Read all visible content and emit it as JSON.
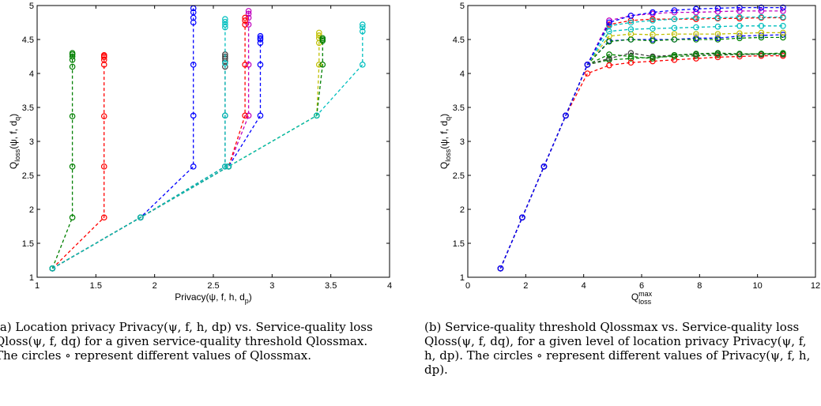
{
  "captions": {
    "a": "(a) Location privacy Privacy(ψ, f, h, dp) vs. Service-quality loss Qloss(ψ, f, dq) for a given service-quality threshold Qlossmax. The circles ∘ represent different values of Qlossmax.",
    "b": "(b) Service-quality threshold Qlossmax vs. Service-quality loss Qloss(ψ, f, dq), for a given level of location privacy Privacy(ψ, f, h, dp). The circles ∘ represent different values of Privacy(ψ, f, h, dp)."
  },
  "chart_data": [
    {
      "type": "line",
      "xlabel": "Privacy(ψ, f, h, d",
      "xlabel_sub": "p",
      "ylabel": "Q",
      "ylabel_sub1": "loss",
      "ylabel_rest": "(ψ, f, d",
      "ylabel_sub2": "q",
      "xlim": [
        1,
        4
      ],
      "ylim": [
        1,
        5
      ],
      "xticks": [
        "1",
        "1.5",
        "2",
        "2.5",
        "3",
        "3.5",
        "4"
      ],
      "yticks": [
        "1",
        "1.5",
        "2",
        "2.5",
        "3",
        "3.5",
        "4",
        "4.5",
        "5"
      ],
      "line_style": "dashed",
      "marker": "open-circle",
      "series": [
        {
          "color": "#008000",
          "x": [
            1.13,
            1.3,
            1.3,
            1.3,
            1.3,
            1.3,
            1.3,
            1.3,
            1.3
          ],
          "y": [
            1.13,
            1.88,
            2.63,
            3.37,
            4.1,
            4.2,
            4.25,
            4.28,
            4.3
          ]
        },
        {
          "color": "#ff0000",
          "x": [
            1.13,
            1.57,
            1.57,
            1.57,
            1.57,
            1.57,
            1.57,
            1.57,
            1.57
          ],
          "y": [
            1.13,
            1.88,
            2.63,
            3.37,
            4.13,
            4.2,
            4.24,
            4.26,
            4.27
          ]
        },
        {
          "color": "#0000ff",
          "x": [
            1.13,
            1.88,
            2.33,
            2.33,
            2.33,
            2.33,
            2.33,
            2.33,
            2.33
          ],
          "y": [
            1.13,
            1.88,
            2.63,
            3.38,
            4.13,
            4.75,
            4.82,
            4.9,
            4.96
          ]
        },
        {
          "color": "#404040",
          "x": [
            1.13,
            1.88,
            2.6,
            2.6,
            2.6,
            2.6,
            2.6,
            2.6,
            2.6
          ],
          "y": [
            1.13,
            1.88,
            2.63,
            3.38,
            4.1,
            4.18,
            4.22,
            4.25,
            4.28
          ]
        },
        {
          "color": "#00bfbf",
          "x": [
            1.13,
            1.88,
            2.6,
            2.6,
            2.6,
            2.6,
            2.6,
            2.6,
            2.6
          ],
          "y": [
            1.13,
            1.88,
            2.63,
            3.38,
            4.15,
            4.68,
            4.72,
            4.76,
            4.8
          ]
        },
        {
          "color": "#bf00bf",
          "x": [
            1.13,
            1.88,
            2.63,
            2.8,
            2.8,
            2.8,
            2.8,
            2.8,
            2.8
          ],
          "y": [
            1.13,
            1.88,
            2.63,
            3.38,
            4.13,
            4.72,
            4.82,
            4.88,
            4.92
          ]
        },
        {
          "color": "#ff0000",
          "x": [
            1.13,
            1.88,
            2.63,
            2.77,
            2.77,
            2.77,
            2.77,
            2.77
          ],
          "y": [
            1.13,
            1.88,
            2.63,
            3.38,
            4.13,
            4.72,
            4.78,
            4.82
          ]
        },
        {
          "color": "#0000ff",
          "x": [
            1.13,
            1.88,
            2.63,
            2.9,
            2.9,
            2.9,
            2.9,
            2.9,
            2.9
          ],
          "y": [
            1.13,
            1.88,
            2.63,
            3.38,
            4.13,
            4.45,
            4.5,
            4.52,
            4.55
          ]
        },
        {
          "color": "#bfbf00",
          "x": [
            1.13,
            1.88,
            2.63,
            3.38,
            3.4,
            3.4,
            3.4,
            3.4,
            3.4
          ],
          "y": [
            1.13,
            1.88,
            2.63,
            3.38,
            4.13,
            4.45,
            4.52,
            4.56,
            4.6
          ]
        },
        {
          "color": "#008000",
          "x": [
            1.13,
            1.88,
            2.63,
            3.38,
            3.43,
            3.43,
            3.43,
            3.43
          ],
          "y": [
            1.13,
            1.88,
            2.63,
            3.38,
            4.13,
            4.48,
            4.5,
            4.52
          ]
        },
        {
          "color": "#00bfbf",
          "x": [
            1.13,
            1.88,
            2.63,
            3.38,
            3.77,
            3.77,
            3.77,
            3.77
          ],
          "y": [
            1.13,
            1.88,
            2.63,
            3.38,
            4.13,
            4.62,
            4.68,
            4.72
          ]
        }
      ]
    },
    {
      "type": "line",
      "xlabel": "Q",
      "xlabel_sup": "max",
      "xlabel_sub": "loss",
      "ylabel": "Q",
      "ylabel_sub1": "loss",
      "ylabel_rest": "(ψ, f, d",
      "ylabel_sub2": "q",
      "xlim": [
        0,
        12
      ],
      "ylim": [
        1,
        5
      ],
      "xticks": [
        "0",
        "2",
        "4",
        "6",
        "8",
        "10",
        "12"
      ],
      "yticks": [
        "1",
        "1.5",
        "2",
        "2.5",
        "3",
        "3.5",
        "4",
        "4.5",
        "5"
      ],
      "line_style": "dashed",
      "marker": "open-circle",
      "series": [
        {
          "color": "#008000",
          "x": [
            1.13,
            1.88,
            2.63,
            3.38,
            4.13,
            4.88,
            5.63,
            6.38,
            7.13,
            7.88,
            8.63,
            9.38,
            10.13,
            10.88
          ],
          "y": [
            1.13,
            1.88,
            2.63,
            3.38,
            4.13,
            4.2,
            4.22,
            4.24,
            4.25,
            4.26,
            4.27,
            4.28,
            4.29,
            4.3
          ]
        },
        {
          "color": "#ff0000",
          "x": [
            1.13,
            1.88,
            2.63,
            3.38,
            4.13,
            4.88,
            5.63,
            6.38,
            7.13,
            7.88,
            8.63,
            9.38,
            10.13,
            10.88
          ],
          "y": [
            1.13,
            1.88,
            2.63,
            3.38,
            4.0,
            4.12,
            4.16,
            4.18,
            4.2,
            4.22,
            4.24,
            4.25,
            4.26,
            4.26
          ]
        },
        {
          "color": "#404040",
          "x": [
            1.13,
            1.88,
            2.63,
            3.38,
            4.13,
            4.88,
            5.63,
            6.38,
            7.13,
            7.88,
            8.63,
            9.38,
            10.13,
            10.88
          ],
          "y": [
            1.13,
            1.88,
            2.63,
            3.38,
            4.13,
            4.22,
            4.3,
            4.25,
            4.27,
            4.28,
            4.29,
            4.28,
            4.28,
            4.28
          ]
        },
        {
          "color": "#008000",
          "x": [
            1.13,
            1.88,
            2.63,
            3.38,
            4.13,
            4.88,
            5.63,
            6.38,
            7.13,
            7.88,
            8.63,
            9.38,
            10.13,
            10.88
          ],
          "y": [
            1.13,
            1.88,
            2.63,
            3.38,
            4.13,
            4.28,
            4.25,
            4.22,
            4.27,
            4.29,
            4.3,
            4.29,
            4.29,
            4.29
          ]
        },
        {
          "color": "#0000ff",
          "x": [
            1.13,
            1.88,
            2.63,
            3.38,
            4.13,
            4.88,
            5.63,
            6.38,
            7.13,
            7.88,
            8.63,
            9.38,
            10.13,
            10.88
          ],
          "y": [
            1.13,
            1.88,
            2.63,
            3.38,
            4.13,
            4.48,
            4.5,
            4.5,
            4.5,
            4.52,
            4.52,
            4.55,
            4.56,
            4.57
          ]
        },
        {
          "color": "#008000",
          "x": [
            1.13,
            1.88,
            2.63,
            3.38,
            4.13,
            4.88,
            5.63,
            6.38,
            7.13,
            7.88,
            8.63,
            9.38,
            10.13,
            10.88
          ],
          "y": [
            1.13,
            1.88,
            2.63,
            3.38,
            4.13,
            4.47,
            4.5,
            4.48,
            4.5,
            4.5,
            4.5,
            4.52,
            4.53,
            4.53
          ]
        },
        {
          "color": "#bfbf00",
          "x": [
            1.13,
            1.88,
            2.63,
            3.38,
            4.13,
            4.88,
            5.63,
            6.38,
            7.13,
            7.88,
            8.63,
            9.38,
            10.13,
            10.88
          ],
          "y": [
            1.13,
            1.88,
            2.63,
            3.38,
            4.13,
            4.55,
            4.58,
            4.57,
            4.58,
            4.58,
            4.58,
            4.59,
            4.6,
            4.6
          ]
        },
        {
          "color": "#00bfbf",
          "x": [
            1.13,
            1.88,
            2.63,
            3.38,
            4.13,
            4.88,
            5.63,
            6.38,
            7.13,
            7.88,
            8.63,
            9.38,
            10.13,
            10.88
          ],
          "y": [
            1.13,
            1.88,
            2.63,
            3.38,
            4.13,
            4.62,
            4.65,
            4.66,
            4.67,
            4.68,
            4.69,
            4.7,
            4.7,
            4.7
          ]
        },
        {
          "color": "#ff0000",
          "x": [
            1.13,
            1.88,
            2.63,
            3.38,
            4.13,
            4.88,
            5.63,
            6.38,
            7.13,
            7.88,
            8.63,
            9.38,
            10.13,
            10.88
          ],
          "y": [
            1.13,
            1.88,
            2.63,
            3.38,
            4.13,
            4.72,
            4.78,
            4.8,
            4.8,
            4.8,
            4.81,
            4.81,
            4.82,
            4.82
          ]
        },
        {
          "color": "#00bfbf",
          "x": [
            1.13,
            1.88,
            2.63,
            3.38,
            4.13,
            4.88,
            5.63,
            6.38,
            7.13,
            7.88,
            8.63,
            9.38,
            10.13,
            10.88
          ],
          "y": [
            1.13,
            1.88,
            2.63,
            3.38,
            4.13,
            4.7,
            4.75,
            4.78,
            4.8,
            4.82,
            4.82,
            4.83,
            4.83,
            4.83
          ]
        },
        {
          "color": "#bf00bf",
          "x": [
            1.13,
            1.88,
            2.63,
            3.38,
            4.13,
            4.88,
            5.63,
            6.38,
            7.13,
            7.88,
            8.63,
            9.38,
            10.13,
            10.88
          ],
          "y": [
            1.13,
            1.88,
            2.63,
            3.38,
            4.13,
            4.78,
            4.85,
            4.88,
            4.9,
            4.9,
            4.91,
            4.92,
            4.92,
            4.92
          ]
        },
        {
          "color": "#0000ff",
          "x": [
            1.13,
            1.88,
            2.63,
            3.38,
            4.13,
            4.88,
            5.63,
            6.38,
            7.13,
            7.88,
            8.63,
            9.38,
            10.13,
            10.88
          ],
          "y": [
            1.13,
            1.88,
            2.63,
            3.38,
            4.13,
            4.75,
            4.85,
            4.9,
            4.93,
            4.95,
            4.96,
            4.97,
            4.97,
            4.97
          ]
        }
      ]
    }
  ]
}
